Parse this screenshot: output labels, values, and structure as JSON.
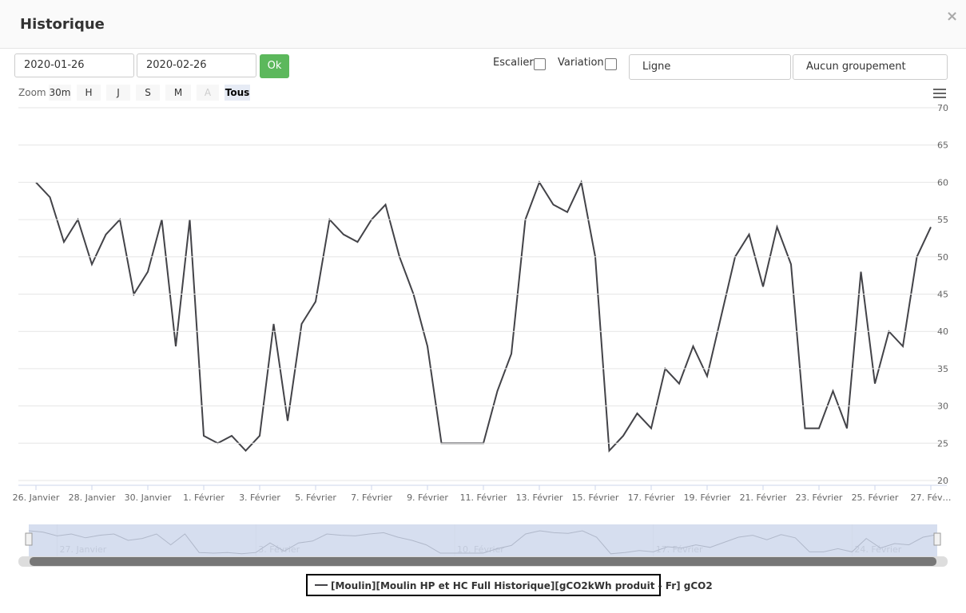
{
  "header": {
    "title": "Historique",
    "close": "×"
  },
  "form": {
    "date_from": "2020-01-26",
    "date_to": "2020-02-26",
    "ok": "Ok",
    "stairs": "Escalier",
    "variation": "Variation",
    "chart_type": "Ligne",
    "grouping": "Aucun groupement"
  },
  "zoom": {
    "label": "Zoom",
    "buttons": [
      "30m",
      "H",
      "J",
      "S",
      "M",
      "A",
      "Tous"
    ]
  },
  "chart_data": {
    "type": "line",
    "x": [
      "2020-01-26T00:00",
      "2020-01-26T12:00",
      "2020-01-27T00:00",
      "2020-01-27T12:00",
      "2020-01-28T00:00",
      "2020-01-28T12:00",
      "2020-01-29T00:00",
      "2020-01-29T12:00",
      "2020-01-30T00:00",
      "2020-01-30T12:00",
      "2020-01-31T00:00",
      "2020-01-31T12:00",
      "2020-02-01T00:00",
      "2020-02-01T12:00",
      "2020-02-02T00:00",
      "2020-02-02T12:00",
      "2020-02-03T00:00",
      "2020-02-03T12:00",
      "2020-02-04T00:00",
      "2020-02-04T12:00",
      "2020-02-05T00:00",
      "2020-02-05T12:00",
      "2020-02-06T00:00",
      "2020-02-06T12:00",
      "2020-02-07T00:00",
      "2020-02-07T12:00",
      "2020-02-08T00:00",
      "2020-02-08T12:00",
      "2020-02-09T00:00",
      "2020-02-09T12:00",
      "2020-02-10T00:00",
      "2020-02-10T12:00",
      "2020-02-11T00:00",
      "2020-02-11T12:00",
      "2020-02-12T00:00",
      "2020-02-12T12:00",
      "2020-02-13T00:00",
      "2020-02-13T12:00",
      "2020-02-14T00:00",
      "2020-02-14T12:00",
      "2020-02-15T00:00",
      "2020-02-15T12:00",
      "2020-02-16T00:00",
      "2020-02-16T12:00",
      "2020-02-17T00:00",
      "2020-02-17T12:00",
      "2020-02-18T00:00",
      "2020-02-18T12:00",
      "2020-02-19T00:00",
      "2020-02-19T12:00",
      "2020-02-20T00:00",
      "2020-02-20T12:00",
      "2020-02-21T00:00",
      "2020-02-21T12:00",
      "2020-02-22T00:00",
      "2020-02-22T12:00",
      "2020-02-23T00:00",
      "2020-02-23T12:00",
      "2020-02-24T00:00",
      "2020-02-24T12:00",
      "2020-02-25T00:00",
      "2020-02-25T12:00",
      "2020-02-26T00:00",
      "2020-02-26T12:00",
      "2020-02-27T00:00"
    ],
    "series": [
      {
        "name": "[Moulin][Moulin HP et HC Full Historique][gCO2kWh produit - Fr] gCO2",
        "color": "#434348",
        "values": [
          60,
          58,
          52,
          55,
          49,
          53,
          55,
          45,
          48,
          55,
          38,
          55,
          26,
          25,
          26,
          24,
          26,
          41,
          28,
          41,
          44,
          55,
          53,
          52,
          55,
          57,
          50,
          45,
          38,
          25,
          25,
          25,
          25,
          32,
          37,
          55,
          60,
          57,
          56,
          60,
          50,
          24,
          26,
          29,
          27,
          35,
          33,
          38,
          34,
          42,
          50,
          53,
          46,
          54,
          49,
          27,
          27,
          32,
          27,
          48,
          33,
          40,
          38,
          50,
          54
        ]
      }
    ],
    "xlim": [
      "2020-01-26T00:00",
      "2020-02-27T00:00"
    ],
    "xticks": [
      {
        "value": "2020-01-26T00:00",
        "label": "26. Janvier"
      },
      {
        "value": "2020-01-28T00:00",
        "label": "28. Janvier"
      },
      {
        "value": "2020-01-30T00:00",
        "label": "30. Janvier"
      },
      {
        "value": "2020-02-01T00:00",
        "label": "1. Février"
      },
      {
        "value": "2020-02-03T00:00",
        "label": "3. Février"
      },
      {
        "value": "2020-02-05T00:00",
        "label": "5. Février"
      },
      {
        "value": "2020-02-07T00:00",
        "label": "7. Février"
      },
      {
        "value": "2020-02-09T00:00",
        "label": "9. Février"
      },
      {
        "value": "2020-02-11T00:00",
        "label": "11. Février"
      },
      {
        "value": "2020-02-13T00:00",
        "label": "13. Février"
      },
      {
        "value": "2020-02-15T00:00",
        "label": "15. Février"
      },
      {
        "value": "2020-02-17T00:00",
        "label": "17. Février"
      },
      {
        "value": "2020-02-19T00:00",
        "label": "19. Février"
      },
      {
        "value": "2020-02-21T00:00",
        "label": "21. Février"
      },
      {
        "value": "2020-02-23T00:00",
        "label": "23. Février"
      },
      {
        "value": "2020-02-25T00:00",
        "label": "25. Février"
      },
      {
        "value": "2020-02-27T00:00",
        "label": "27. Fév…"
      }
    ],
    "ylim": [
      20,
      70
    ],
    "yticks": [
      20,
      25,
      30,
      35,
      40,
      45,
      50,
      55,
      60,
      65,
      70
    ],
    "grid": true,
    "navigator": {
      "ticks": [
        {
          "value": "2020-01-27T00:00",
          "label": "27. Janvier"
        },
        {
          "value": "2020-02-03T00:00",
          "label": "3. Février"
        },
        {
          "value": "2020-02-10T00:00",
          "label": "10. Février"
        },
        {
          "value": "2020-02-17T00:00",
          "label": "17. Février"
        },
        {
          "value": "2020-02-24T00:00",
          "label": "24. Février"
        }
      ]
    }
  }
}
